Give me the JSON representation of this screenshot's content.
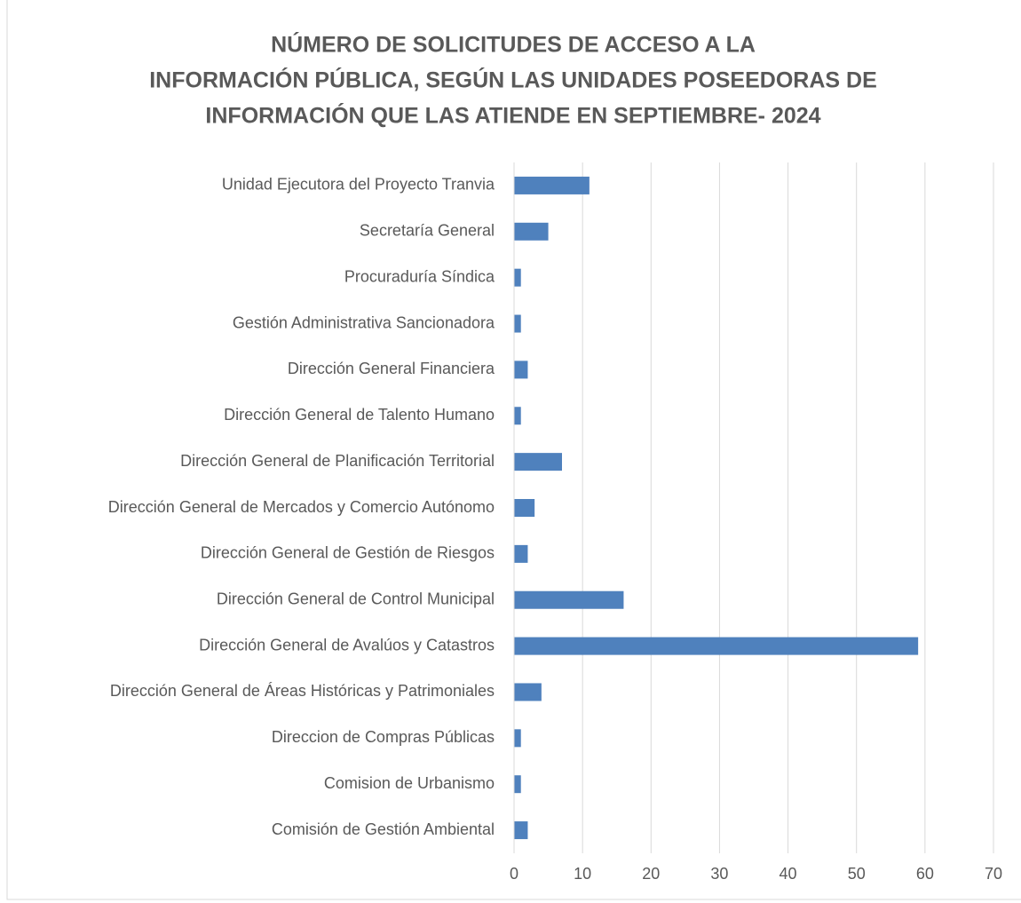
{
  "chart_data": {
    "type": "barh",
    "title": [
      "NÚMERO DE SOLICITUDES DE ACCESO A LA",
      "INFORMACIÓN PÚBLICA, SEGÚN LAS UNIDADES POSEEDORAS DE",
      "INFORMACIÓN QUE LAS ATIENDE EN SEPTIEMBRE- 2024"
    ],
    "categories": [
      "Unidad Ejecutora del Proyecto Tranvia",
      "Secretaría General",
      "Procuraduría Síndica",
      "Gestión Administrativa Sancionadora",
      "Dirección General Financiera",
      "Dirección General de Talento Humano",
      "Dirección General de Planificación Territorial",
      "Dirección General de Mercados y Comercio Autónomo",
      "Dirección General de Gestión de Riesgos",
      "Dirección General de Control Municipal",
      "Dirección General de Avalúos y Catastros",
      "Dirección General de Áreas Históricas y Patrimoniales",
      "Direccion de Compras Públicas",
      "Comision de Urbanismo",
      "Comisión de Gestión Ambiental"
    ],
    "values": [
      11,
      5,
      1,
      1,
      2,
      1,
      7,
      3,
      2,
      16,
      59,
      4,
      1,
      1,
      2
    ],
    "color": "#4f81bd",
    "xlim": [
      0,
      70
    ],
    "xticks": [
      0,
      10,
      20,
      30,
      40,
      50,
      60,
      70
    ],
    "grid": true
  }
}
